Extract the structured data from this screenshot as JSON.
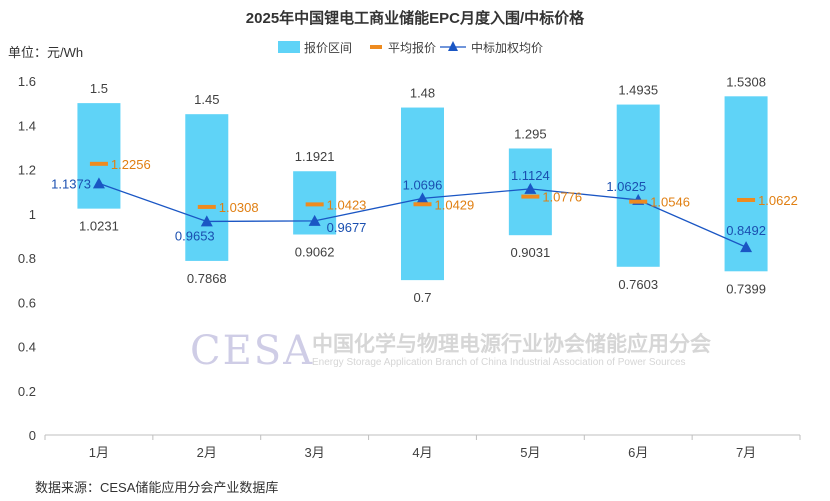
{
  "chart_data": {
    "type": "bar",
    "title": "2025年中国锂电工商业储能EPC月度入围/中标价格",
    "unit_label": "单位：元/Wh",
    "categories": [
      "1月",
      "2月",
      "3月",
      "4月",
      "5月",
      "6月",
      "7月"
    ],
    "ylim": [
      0,
      1.6
    ],
    "yticks": [
      "0",
      "0.2",
      "0.4",
      "0.6",
      "0.8",
      "1",
      "1.2",
      "1.4",
      "1.6"
    ],
    "ytick_values": [
      0,
      0.2,
      0.4,
      0.6,
      0.8,
      1.0,
      1.2,
      1.4,
      1.6
    ],
    "legend": {
      "range": "报价区间",
      "avg": "平均报价",
      "weighted": "中标加权均价"
    },
    "series": [
      {
        "name": "报价区间",
        "kind": "range-bar",
        "high": [
          1.5,
          1.45,
          1.1921,
          1.48,
          1.295,
          1.4935,
          1.5308
        ],
        "low": [
          1.0231,
          0.7868,
          0.9062,
          0.7,
          0.9031,
          0.7603,
          0.7399
        ],
        "high_labels": [
          "1.5",
          "1.45",
          "1.1921",
          "1.48",
          "1.295",
          "1.4935",
          "1.5308"
        ],
        "low_labels": [
          "1.0231",
          "0.7868",
          "0.9062",
          "0.7",
          "0.9031",
          "0.7603",
          "0.7399"
        ]
      },
      {
        "name": "平均报价",
        "kind": "dash-marker",
        "values": [
          1.2256,
          1.0308,
          1.0423,
          1.0429,
          1.0776,
          1.0546,
          1.0622
        ],
        "labels": [
          "1.2256",
          "1.0308",
          "1.0423",
          "1.0429",
          "1.0776",
          "1.0546",
          "1.0622"
        ]
      },
      {
        "name": "中标加权均价",
        "kind": "line",
        "values": [
          1.1373,
          0.9653,
          0.9677,
          1.0696,
          1.1124,
          1.0625,
          0.8492
        ],
        "labels": [
          "1.1373",
          "0.9653",
          "0.9677",
          "1.0696",
          "1.1124",
          "1.0625",
          "0.8492"
        ]
      }
    ],
    "colors": {
      "range": "#5fd3f7",
      "avg": "#ee8b1f",
      "weighted": "#1a56c4",
      "avg_label": "#e07f12",
      "weighted_label": "#1a4fb0",
      "axis": "#bfbfbf",
      "text": "#404040"
    }
  },
  "watermark": {
    "logo": "CESA",
    "cn": "中国化学与物理电源行业协会储能应用分会",
    "en": "Energy Storage Application Branch of China Industrial Association of Power Sources"
  },
  "source": "数据来源：CESA储能应用分会产业数据库"
}
